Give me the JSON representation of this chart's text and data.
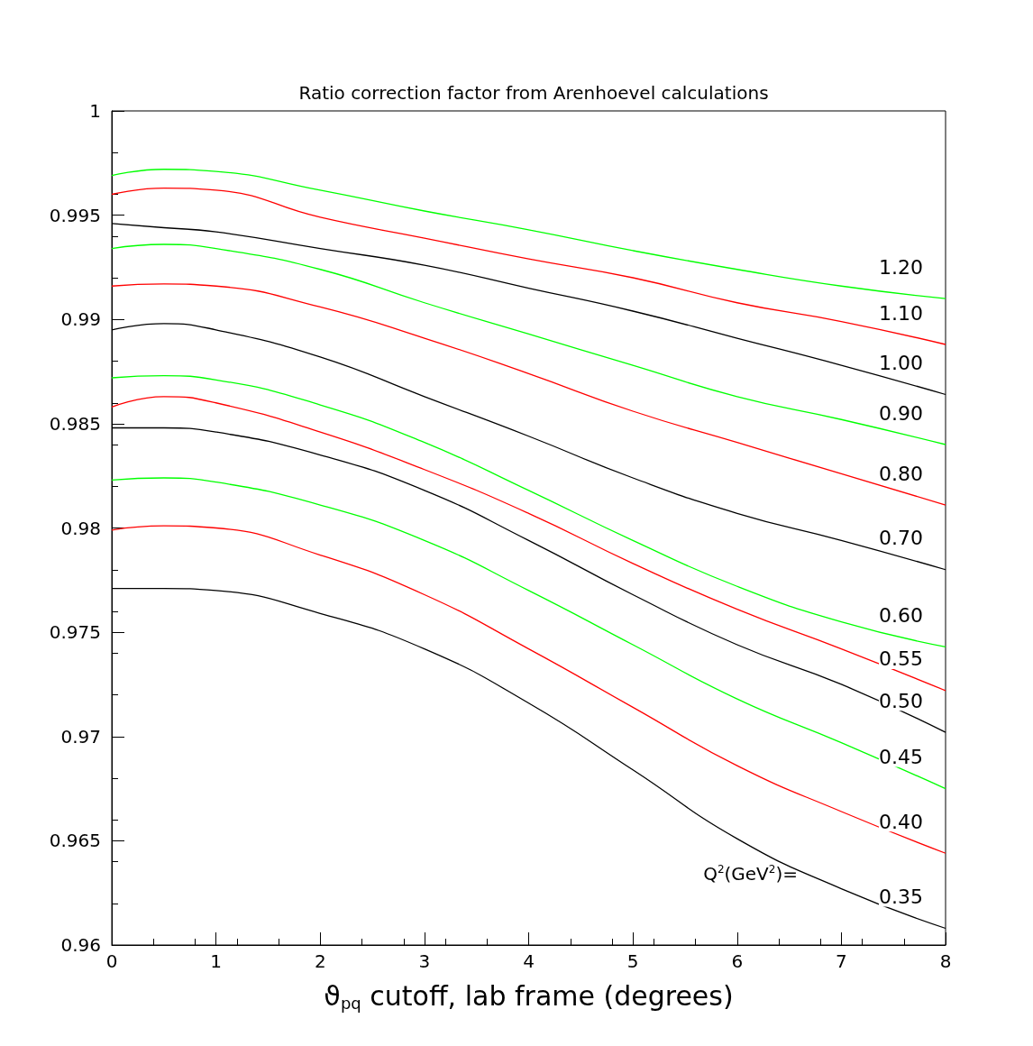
{
  "chart_data": {
    "type": "line",
    "title": "Ratio correction factor from Arenhoevel calculations",
    "xlabel": "ϑ$_{pq}$ cutoff, lab frame (degrees)",
    "legend_title": "Q$^{2}$(GeV$^{2}$)=",
    "x": [
      0,
      0.5,
      1,
      2,
      3,
      4,
      5,
      6,
      7,
      8
    ],
    "xlim": [
      0,
      8
    ],
    "xticks": [
      0,
      1,
      2,
      3,
      4,
      5,
      6,
      7,
      8
    ],
    "ylim": [
      0.96,
      1
    ],
    "yticks": [
      0.96,
      0.965,
      0.97,
      0.975,
      0.98,
      0.985,
      0.99,
      0.995,
      1
    ],
    "grid": false,
    "legend": false,
    "marker": "none",
    "line_style": "solid",
    "series": [
      {
        "name": "1.20",
        "color": "#00ff00",
        "values": [
          0.9969,
          0.9972,
          0.9971,
          0.9962,
          0.9952,
          0.9943,
          0.9933,
          0.9924,
          0.9916,
          0.991
        ]
      },
      {
        "name": "1.10",
        "color": "#ff0000",
        "values": [
          0.996,
          0.9963,
          0.9962,
          0.9949,
          0.9939,
          0.9929,
          0.992,
          0.9908,
          0.9899,
          0.9888
        ]
      },
      {
        "name": "1.00",
        "color": "#000000",
        "values": [
          0.9946,
          0.9944,
          0.9942,
          0.9934,
          0.9926,
          0.9915,
          0.9904,
          0.9891,
          0.9878,
          0.9864
        ]
      },
      {
        "name": "0.90",
        "color": "#00ff00",
        "values": [
          0.9934,
          0.9936,
          0.9934,
          0.9924,
          0.9908,
          0.9893,
          0.9878,
          0.9863,
          0.9852,
          0.984
        ]
      },
      {
        "name": "0.80",
        "color": "#ff0000",
        "values": [
          0.9916,
          0.9917,
          0.9916,
          0.9906,
          0.9891,
          0.9874,
          0.9856,
          0.9841,
          0.9826,
          0.9811
        ]
      },
      {
        "name": "0.70",
        "color": "#000000",
        "values": [
          0.9895,
          0.9898,
          0.9895,
          0.9882,
          0.9863,
          0.9844,
          0.9824,
          0.9807,
          0.9794,
          0.978
        ]
      },
      {
        "name": "0.60",
        "color": "#00ff00",
        "values": [
          0.9872,
          0.9873,
          0.9871,
          0.9859,
          0.9841,
          0.9818,
          0.9794,
          0.9772,
          0.9755,
          0.9743
        ]
      },
      {
        "name": "0.55",
        "color": "#ff0000",
        "values": [
          0.9858,
          0.9863,
          0.986,
          0.9846,
          0.9828,
          0.9807,
          0.9783,
          0.9761,
          0.9742,
          0.9722
        ]
      },
      {
        "name": "0.50",
        "color": "#000000",
        "values": [
          0.9848,
          0.9848,
          0.9846,
          0.9835,
          0.9818,
          0.9794,
          0.9768,
          0.9744,
          0.9725,
          0.9702
        ]
      },
      {
        "name": "0.45",
        "color": "#00ff00",
        "values": [
          0.9823,
          0.9824,
          0.9822,
          0.9811,
          0.9794,
          0.977,
          0.9744,
          0.9718,
          0.9697,
          0.9675
        ]
      },
      {
        "name": "0.40",
        "color": "#ff0000",
        "values": [
          0.9799,
          0.9801,
          0.98,
          0.9787,
          0.9768,
          0.9742,
          0.9714,
          0.9686,
          0.9664,
          0.9644
        ]
      },
      {
        "name": "0.35",
        "color": "#000000",
        "values": [
          0.9771,
          0.9771,
          0.977,
          0.9759,
          0.9742,
          0.9716,
          0.9684,
          0.9651,
          0.9627,
          0.9608
        ]
      }
    ]
  }
}
